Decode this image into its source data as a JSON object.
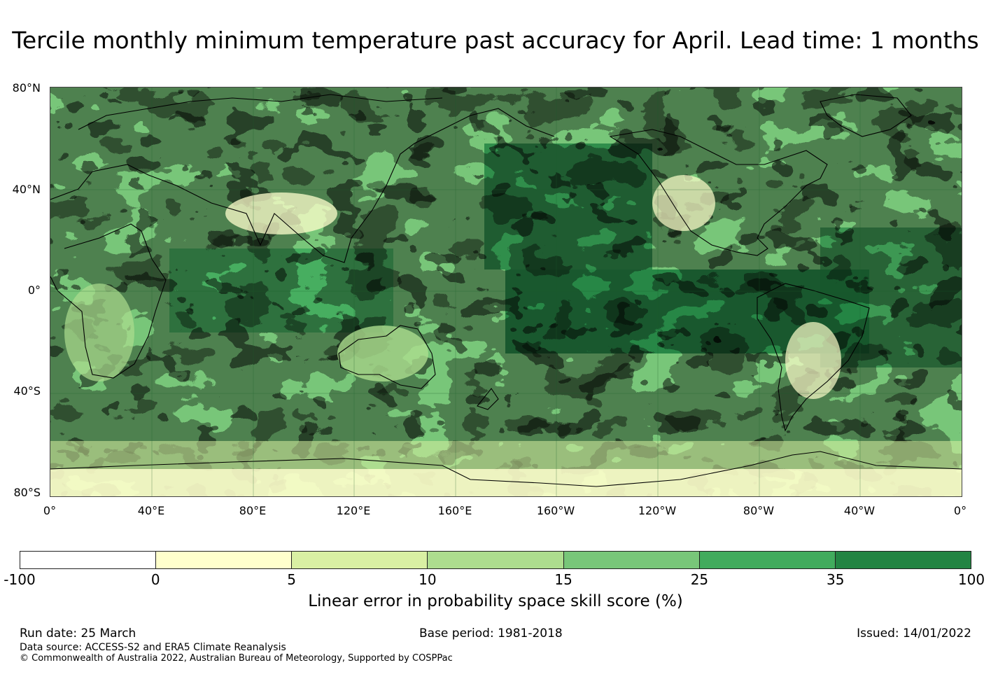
{
  "title": "Tercile monthly minimum temperature past accuracy for April. Lead time: 1 months",
  "map": {
    "lat_labels": [
      "80°N",
      "40°N",
      "0°",
      "40°S",
      "80°S"
    ],
    "lon_labels": [
      "0°",
      "40°E",
      "80°E",
      "120°E",
      "160°E",
      "160°W",
      "120°W",
      "80°W",
      "40°W",
      "0°"
    ]
  },
  "colorbar": {
    "ticks": [
      "-100",
      "0",
      "5",
      "10",
      "15",
      "25",
      "35",
      "100"
    ],
    "colors": [
      "#ffffff",
      "#ffffcc",
      "#d9f0a3",
      "#addd8e",
      "#78c679",
      "#41ab5d",
      "#238443"
    ],
    "label": "Linear error in probability space skill score (%)"
  },
  "footer": {
    "run_date": "Run date: 25 March",
    "base_period": "Base period: 1981-2018",
    "issued": "Issued: 14/01/2022",
    "data_source": "Data source: ACCESS-S2 and ERA5 Climate Reanalysis",
    "copyright": "© Commonwealth of Australia 2022, Australian Bureau of Meteorology, Supported by COSPPac"
  }
}
